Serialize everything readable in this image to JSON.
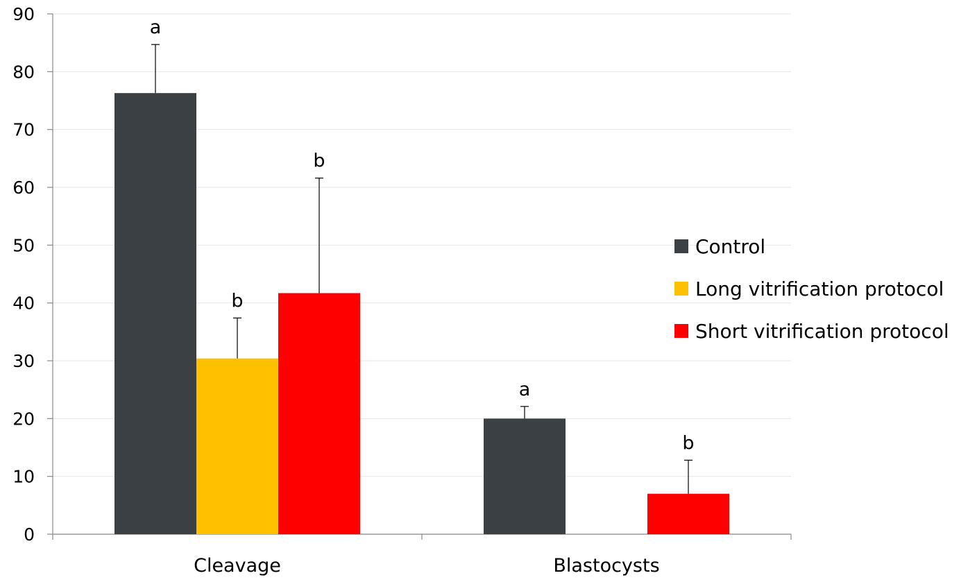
{
  "chart_data": {
    "type": "bar",
    "categories": [
      "Cleavage",
      "Blastocysts"
    ],
    "series": [
      {
        "name": "Control",
        "color": "#3a4043",
        "values": [
          76.3,
          20.0
        ],
        "errors": [
          8.4,
          2.1
        ],
        "letters": [
          "a",
          "a"
        ]
      },
      {
        "name": "Long vitrification protocol",
        "color": "#ffc000",
        "values": [
          30.4,
          0
        ],
        "errors": [
          7.0,
          null
        ],
        "letters": [
          "b",
          ""
        ]
      },
      {
        "name": "Short vitrification protocol",
        "color": "#ff0000",
        "values": [
          41.7,
          7.0
        ],
        "errors": [
          19.9,
          5.8
        ],
        "letters": [
          "b",
          "b"
        ]
      }
    ],
    "ylim": [
      0,
      90
    ],
    "yticks": [
      "0",
      "10",
      "20",
      "30",
      "40",
      "50",
      "60",
      "70",
      "80",
      "90"
    ],
    "grid": true,
    "legend_position": "right",
    "title": "",
    "xlabel": "",
    "ylabel": ""
  }
}
